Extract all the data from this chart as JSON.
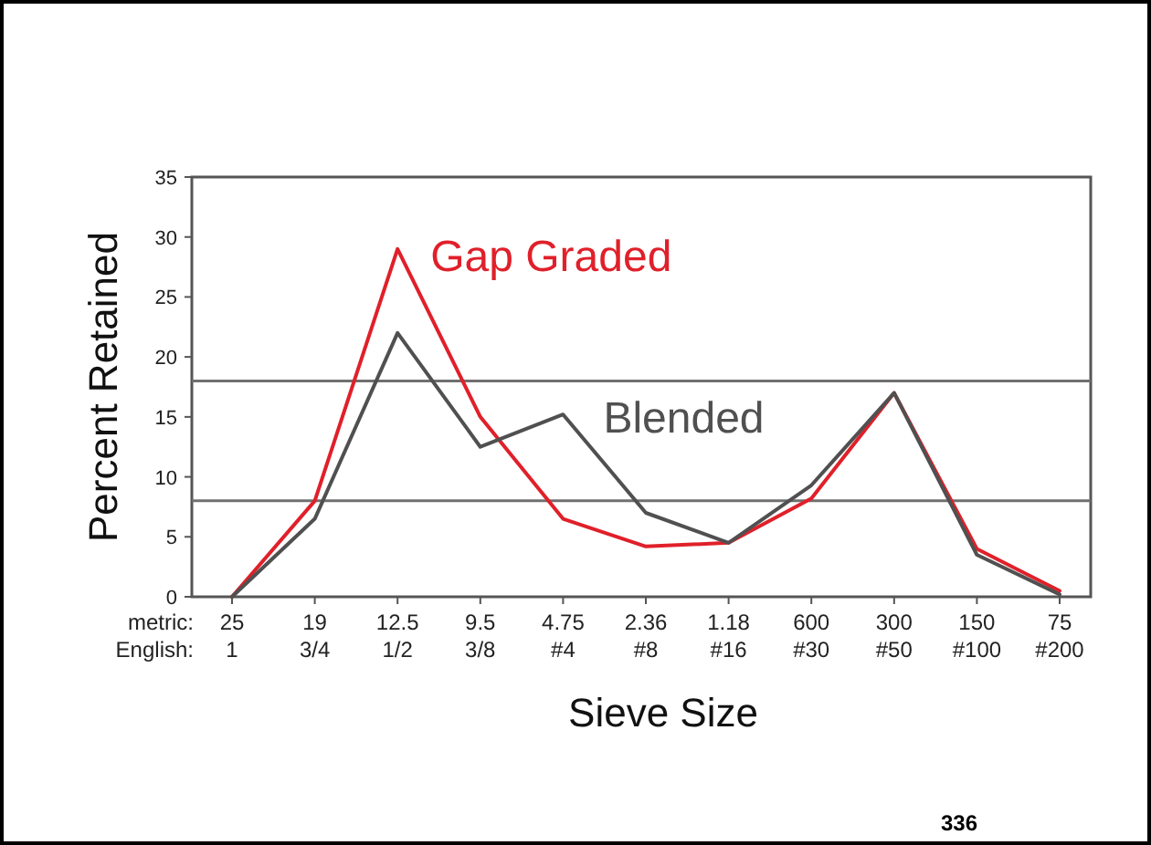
{
  "chart_data": {
    "type": "line",
    "xlabel": "Sieve Size",
    "ylabel": "Percent Retained",
    "categories": [
      "25\n1",
      "19\n3/4",
      "12.5\n1/2",
      "9.5\n3/8",
      "4.75\n#4",
      "2.36\n#8",
      "1.18\n#16",
      "600\n#30",
      "300\n#50",
      "150\n#100",
      "75\n#200"
    ],
    "series": [
      {
        "name": "Gap Graded",
        "color": "#e0202a",
        "values": [
          0,
          8,
          29,
          15,
          6.5,
          4.2,
          4.5,
          8.2,
          17,
          4,
          0.5
        ]
      },
      {
        "name": "Blended",
        "color": "#505050",
        "values": [
          0,
          6.5,
          22,
          12.5,
          15.2,
          7,
          4.5,
          9.3,
          17,
          3.5,
          0.2
        ]
      }
    ],
    "ylim": [
      0,
      35
    ],
    "yticks": [
      0,
      5,
      10,
      15,
      20,
      25,
      30,
      35
    ],
    "ref_lines": [
      {
        "axis": "y",
        "value": 18,
        "color": "#707070"
      },
      {
        "axis": "y",
        "value": 8,
        "color": "#707070"
      }
    ],
    "annotations": [
      "metric:",
      "English:",
      "336"
    ],
    "marker": "none",
    "line_style": "solid"
  }
}
